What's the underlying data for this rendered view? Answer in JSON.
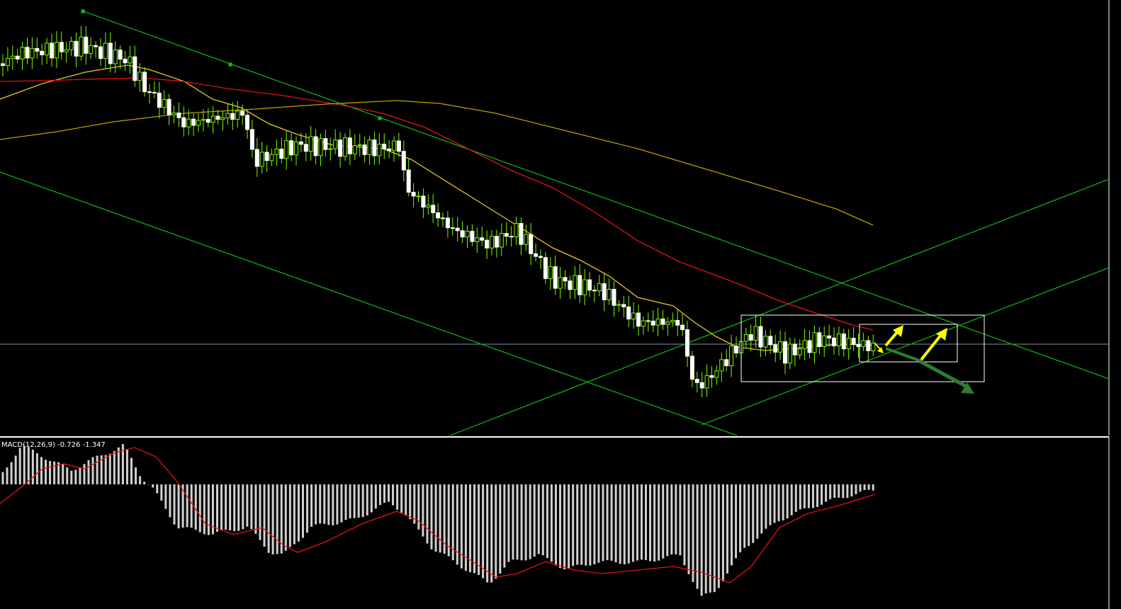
{
  "indicator_label": "MACD(12,26,9) -0.726 -1.347"
}
